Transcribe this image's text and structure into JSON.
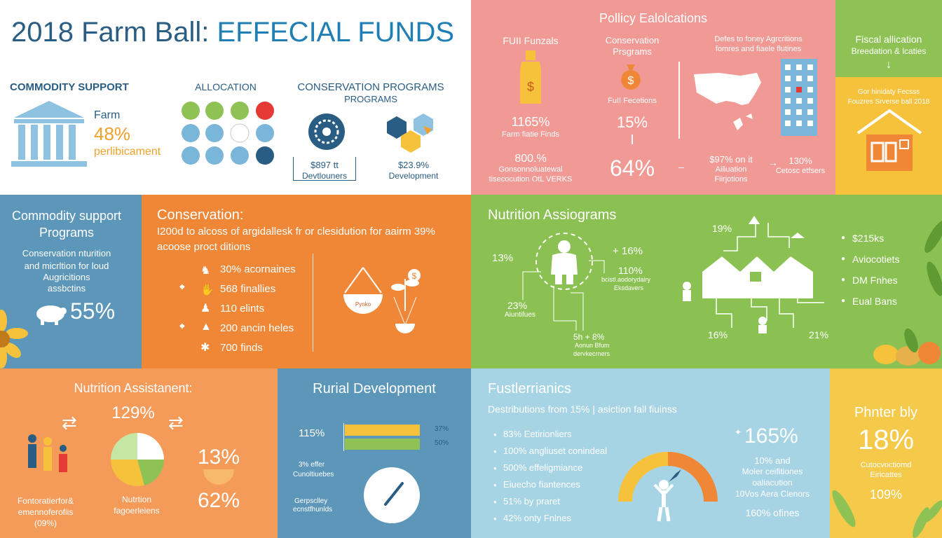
{
  "title": {
    "main": "2018 Farm Ball:",
    "accent": " EFFECIAL FUNDS"
  },
  "top_left": {
    "commodity_heading": "COMMODITY SUPPORT",
    "farm_label": "Farm",
    "farm_pct": "48%",
    "farm_sub": "perlibicament",
    "allocation_heading": "ALLOCATION",
    "conservation_heading_1": "CONSERVATION PROGRAMS",
    "conservation_heading_2": "PROGRAMS",
    "box1_line1": "$897 tt",
    "box1_line2": "Devtlouners",
    "box2_line1": "$23.9%",
    "box2_line2": "Development"
  },
  "policy": {
    "heading": "Pollicy Ealolcations",
    "col1_title": "FUII Funzals",
    "col2_title_1": "Conservation",
    "col2_title_2": "Prsgrams",
    "col3_title_1": "Defes to foney Agrcritions",
    "col3_title_2": "fomres and fiaele flutines",
    "col1_pct": "1165%",
    "col1_pct_sub": "Farm fiatie Finds",
    "col1_pct2": "800.%",
    "col1_pct2_sub1": "Gonsonnoluatewal",
    "col1_pct2_sub2": "tisecocution OtL VERKS",
    "col2_sub": "FuII Fecetions",
    "col2_pct": "15%",
    "col2_big": "64%",
    "col3_pct": "$97% on it",
    "col3_pct_sub1": "Ailiuation",
    "col3_pct_sub2": "Fiirjotions",
    "col4_pct": "130%",
    "col4_pct_sub": "Cetosc etfsers"
  },
  "fiscal": {
    "line1": "Fiscal allication",
    "line2": "Breedation & lcaties"
  },
  "house": {
    "line1": "Gor hinidaty Fecsss",
    "line2": "Fouzres Srverse ball 2018"
  },
  "commodity": {
    "heading_1": "Commodity support",
    "heading_2": "Programs",
    "sub_1": "Conservation nturition",
    "sub_2": "and micrltion for loud",
    "sub_3": "Augricitions",
    "sub_4": "assbctins",
    "pct": "55%"
  },
  "conservation": {
    "heading": "Conservation:",
    "desc_1": "I200d to alcoss of argidallesk fr or clesidution for aairm 39%",
    "desc_2": "acoose proct ditions",
    "items": [
      "30% acornaines",
      "568 finallies",
      "110 elints",
      "200 ancin heles",
      "700 finds"
    ],
    "basket_label": "Pynko"
  },
  "nutri_assi": {
    "heading": "Nutrition Assiograms",
    "pct_a": "13%",
    "pct_b": "+ 16%",
    "pct_c": "110%",
    "pct_c_sub1": "bcistl.aodorydairy",
    "pct_c_sub2": "Eksdavers",
    "pct_d": "23%",
    "pct_d_sub": "Aiuntifues",
    "pct_e": "5h + 8%",
    "pct_e_sub1": "Aonun Bfum",
    "pct_e_sub2": "dervkecrners",
    "pct_f": "19%",
    "pct_g": "16%",
    "pct_h": "21%",
    "list": [
      "$215ks",
      "Aviocotiets",
      "DM Fnhes",
      "Eual Bans"
    ]
  },
  "nutri_assist": {
    "heading": "Nutrition Assistanent:",
    "pct_top": "129%",
    "pct_right": "13%",
    "pct_bottom": "62%",
    "left_1": "Fontoratierfor&",
    "left_2": "emennoferofiis",
    "left_3": "(09%)",
    "mid_1": "Nutrtion",
    "mid_2": "fagoerleiens"
  },
  "rural": {
    "heading": "Rurial Development",
    "bar_label": "115%",
    "bar1_val": "37%",
    "bar2_val": "50%",
    "left_1": "3% effer",
    "left_2": "Cunoltiuebes",
    "left_3": "Gerpsclley",
    "left_4": "ecnstfhunlds",
    "bar1_fraction": 0.72,
    "bar2_fraction": 0.72
  },
  "fust": {
    "heading": "Fustlerrianics",
    "desc": "Destributions from 15% | asiction fall fiuinss",
    "items": [
      "83% Eetirionliers",
      "100% angliuset conindeal",
      "500% effeligmiance",
      "Eiuecho fiantences",
      "51% by praret",
      "42% onty Fnlnes"
    ],
    "big_pct": "165%",
    "right_1": "10% and",
    "right_2": "Moler ceifitiones",
    "right_3": "oaliacution",
    "right_4": "10Vos Aera Clenors",
    "bottom": "160% ofines"
  },
  "phnter": {
    "heading": "Phnter bly",
    "pct": "18%",
    "sub_1": "Cutocvoctiomd",
    "sub_2": "Eiricattes",
    "pct2": "109%"
  },
  "colors": {
    "navy": "#2a5d84",
    "green": "#8ec255",
    "orange": "#f08736",
    "salmon": "#f19a95",
    "yellow": "#f7c23b",
    "blue": "#5c96b8"
  }
}
